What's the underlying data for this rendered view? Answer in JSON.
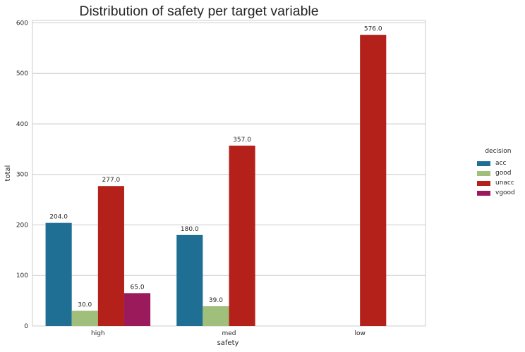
{
  "chart_data": {
    "type": "bar",
    "title": "Distribution of safety per target variable",
    "xlabel": "safety",
    "ylabel": "total",
    "categories": [
      "high",
      "med",
      "low"
    ],
    "series": [
      {
        "name": "acc",
        "color": "#1f6f94",
        "values": [
          204.0,
          180.0,
          null
        ],
        "labels": [
          "204.0",
          "180.0",
          null
        ]
      },
      {
        "name": "good",
        "color": "#a0bf7b",
        "values": [
          30.0,
          39.0,
          null
        ],
        "labels": [
          "30.0",
          "39.0",
          null
        ]
      },
      {
        "name": "unacc",
        "color": "#b4211b",
        "values": [
          277.0,
          357.0,
          576.0
        ],
        "labels": [
          "277.0",
          "357.0",
          "576.0"
        ]
      },
      {
        "name": "vgood",
        "color": "#9b1a5c",
        "values": [
          65.0,
          null,
          null
        ],
        "labels": [
          "65.0",
          null,
          null
        ]
      }
    ],
    "yticks": [
      "0",
      "100",
      "200",
      "300",
      "400",
      "500",
      "600"
    ],
    "ylim": [
      0,
      604.8
    ],
    "grid": true,
    "legend": {
      "title": "decision",
      "position": "right"
    }
  }
}
